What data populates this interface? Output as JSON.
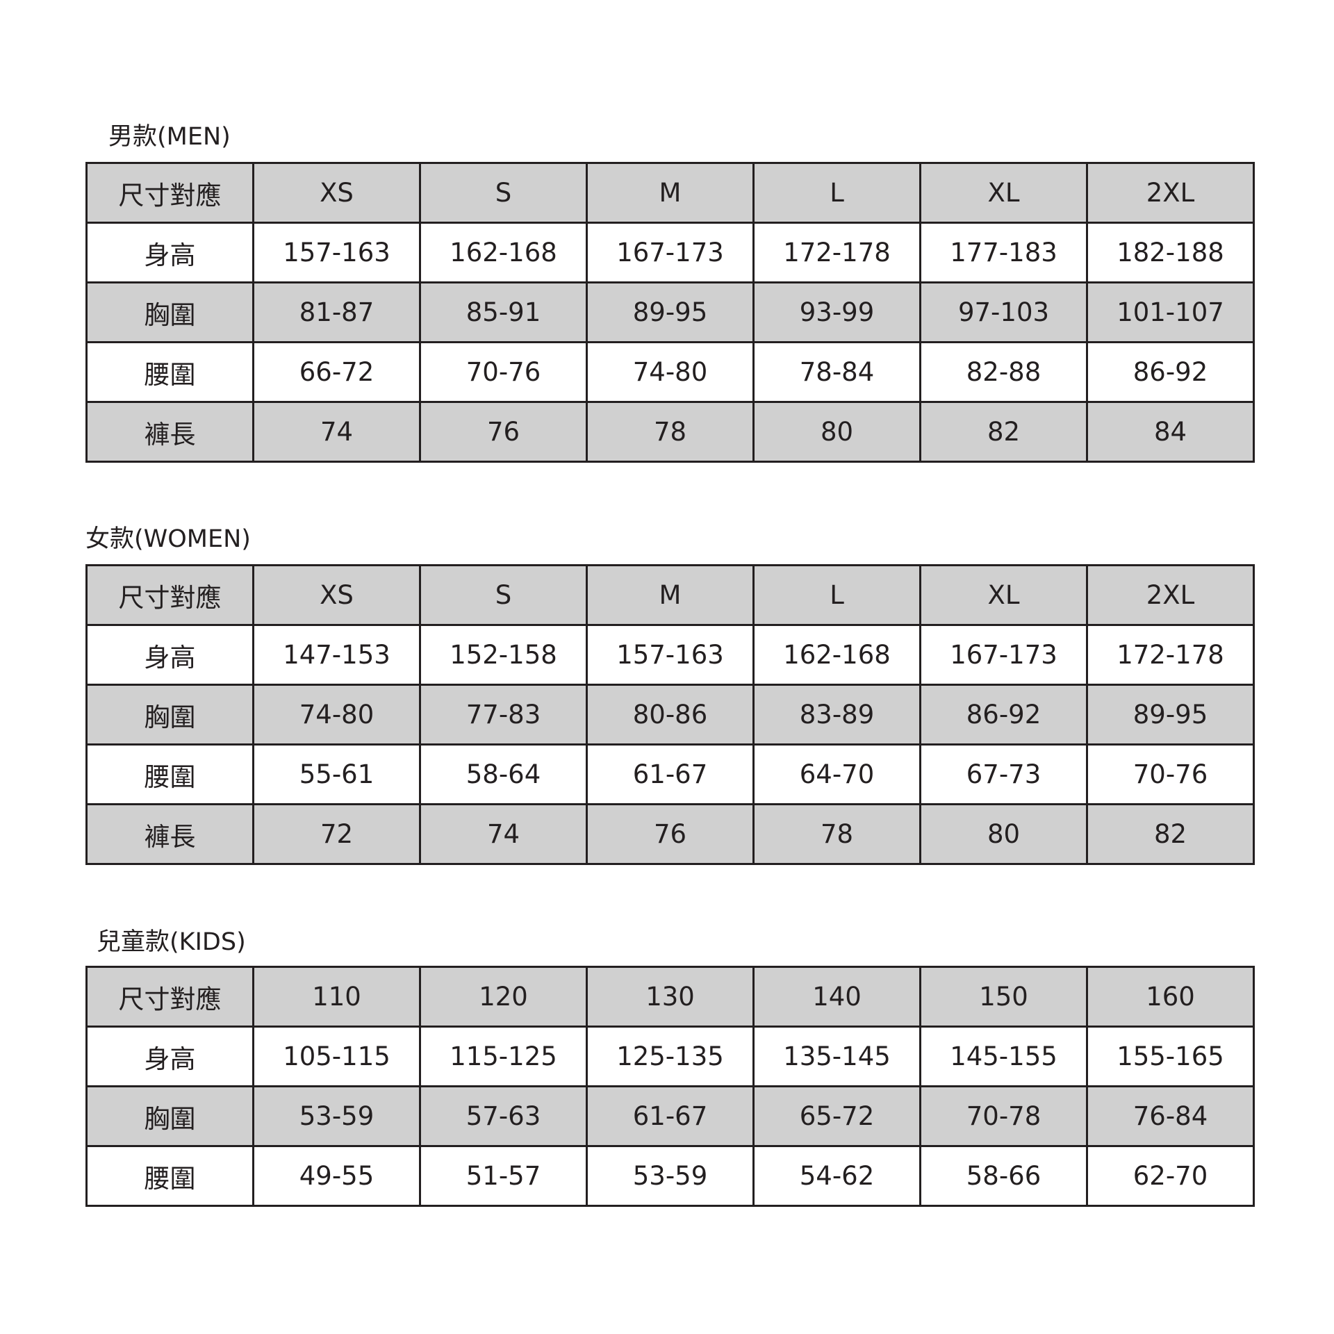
{
  "colors": {
    "header_row": "#d0d0d0",
    "border": "#231f20",
    "text": "#231f20"
  },
  "sections": [
    {
      "title": "男款(MEN)",
      "header": [
        "尺寸對應",
        "XS",
        "S",
        "M",
        "L",
        "XL",
        "2XL"
      ],
      "rows": [
        [
          "身高",
          "157-163",
          "162-168",
          "167-173",
          "172-178",
          "177-183",
          "182-188"
        ],
        [
          "胸圍",
          "81-87",
          "85-91",
          "89-95",
          "93-99",
          "97-103",
          "101-107"
        ],
        [
          "腰圍",
          "66-72",
          "70-76",
          "74-80",
          "78-84",
          "82-88",
          "86-92"
        ],
        [
          "褲長",
          "74",
          "76",
          "78",
          "80",
          "82",
          "84"
        ]
      ]
    },
    {
      "title": "女款(WOMEN)",
      "header": [
        "尺寸對應",
        "XS",
        "S",
        "M",
        "L",
        "XL",
        "2XL"
      ],
      "rows": [
        [
          "身高",
          "147-153",
          "152-158",
          "157-163",
          "162-168",
          "167-173",
          "172-178"
        ],
        [
          "胸圍",
          "74-80",
          "77-83",
          "80-86",
          "83-89",
          "86-92",
          "89-95"
        ],
        [
          "腰圍",
          "55-61",
          "58-64",
          "61-67",
          "64-70",
          "67-73",
          "70-76"
        ],
        [
          "褲長",
          "72",
          "74",
          "76",
          "78",
          "80",
          "82"
        ]
      ]
    },
    {
      "title": "兒童款(KIDS)",
      "header": [
        "尺寸對應",
        "110",
        "120",
        "130",
        "140",
        "150",
        "160"
      ],
      "rows": [
        [
          "身高",
          "105-115",
          "115-125",
          "125-135",
          "135-145",
          "145-155",
          "155-165"
        ],
        [
          "胸圍",
          "53-59",
          "57-63",
          "61-67",
          "65-72",
          "70-78",
          "76-84"
        ],
        [
          "腰圍",
          "49-55",
          "51-57",
          "53-59",
          "54-62",
          "58-66",
          "62-70"
        ]
      ]
    }
  ]
}
